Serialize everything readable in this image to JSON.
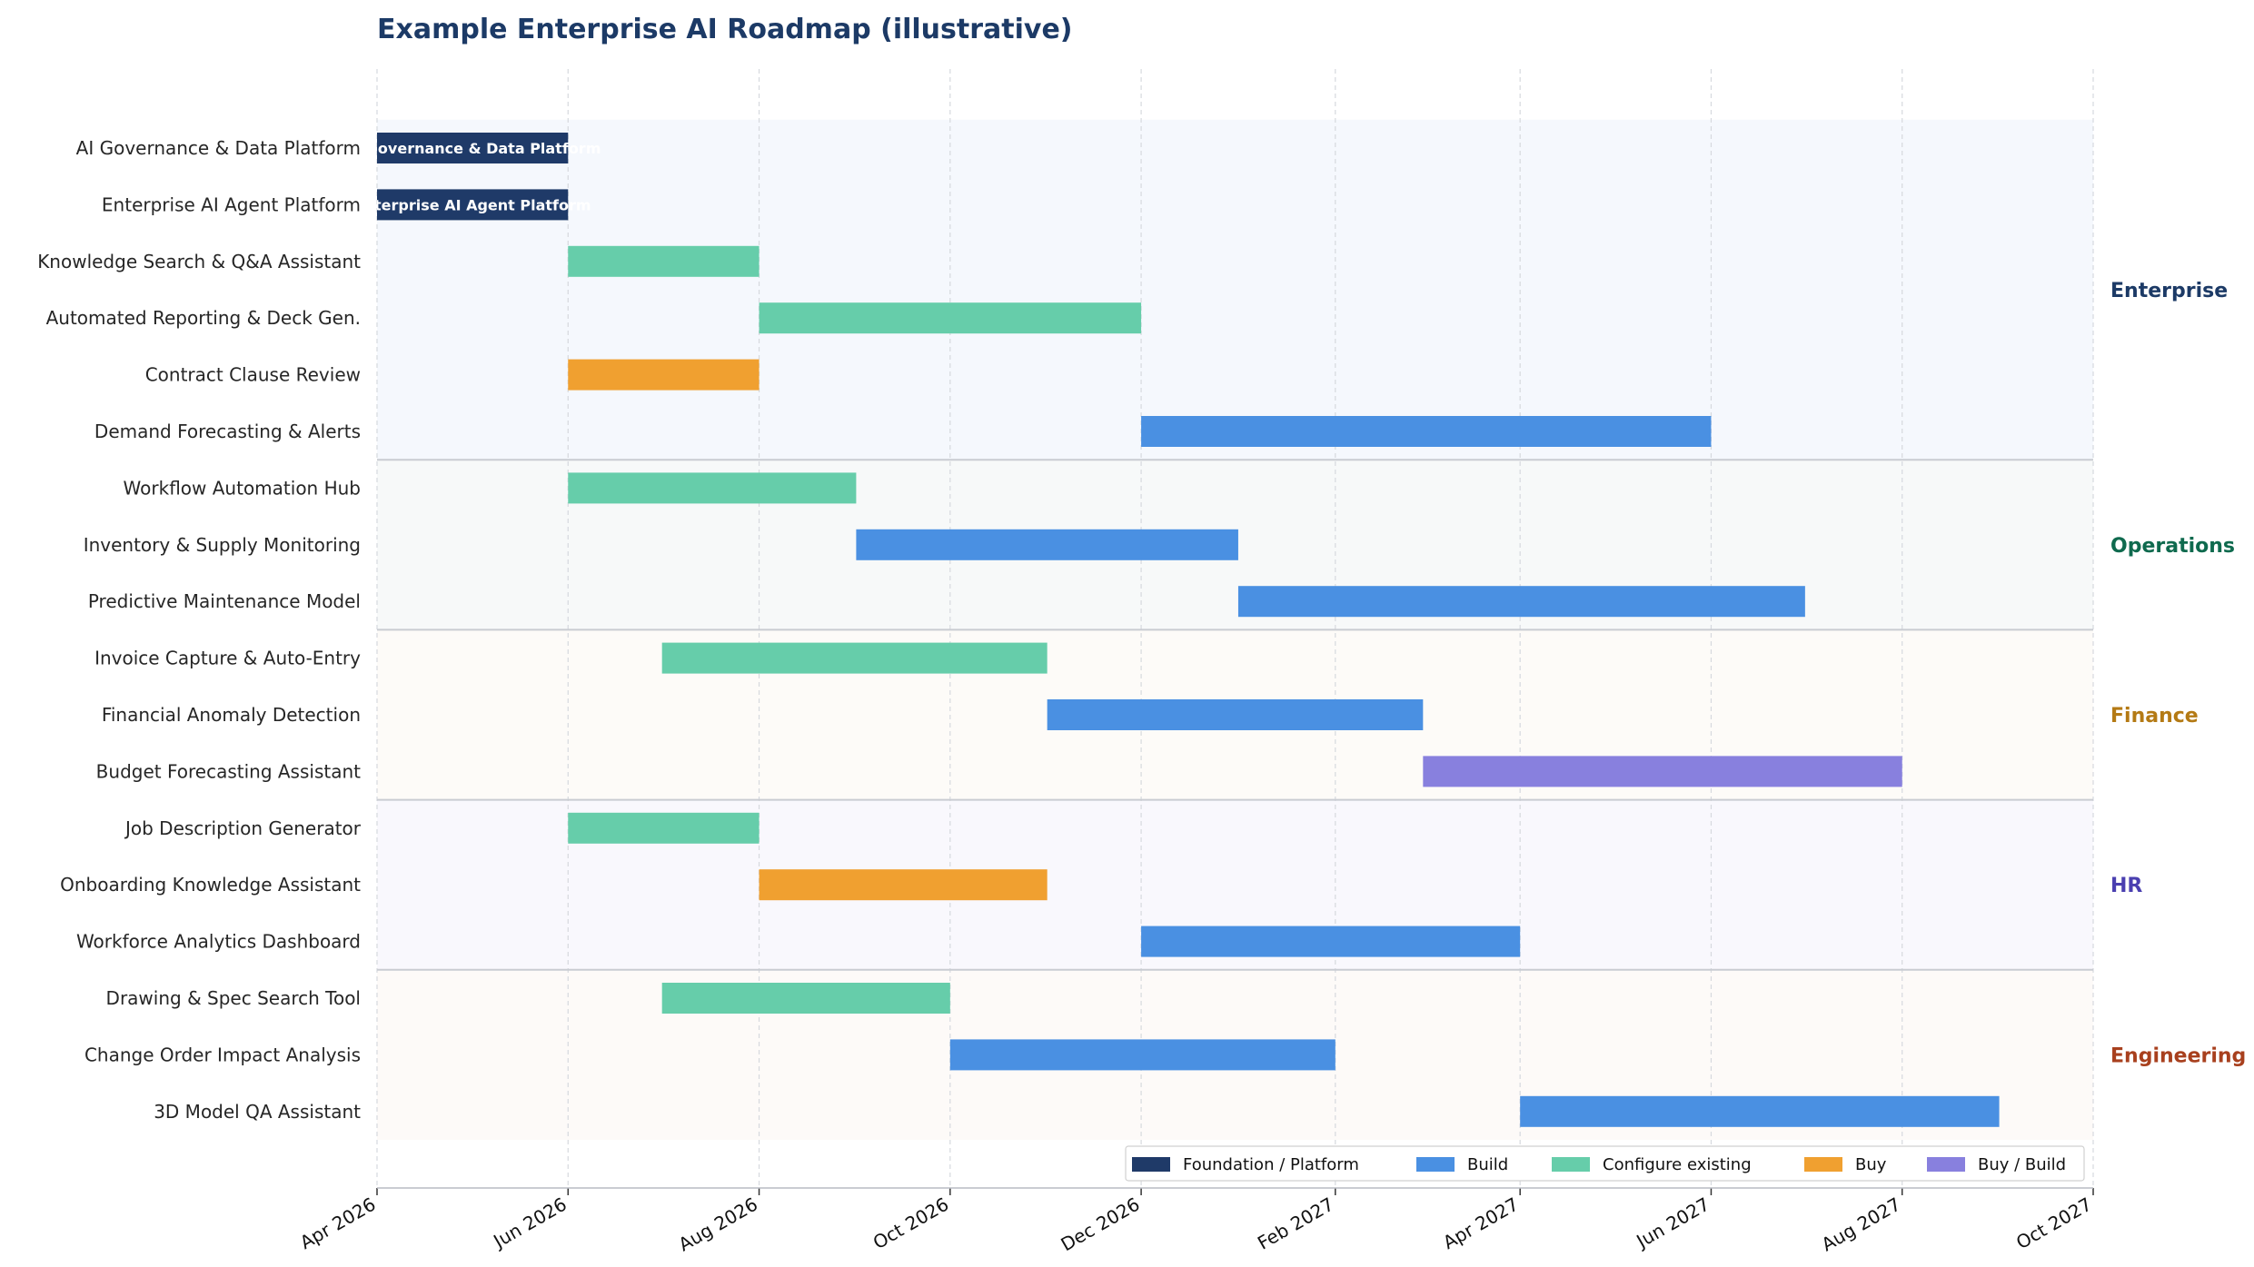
{
  "chart_data": {
    "type": "gantt",
    "title": "Example Enterprise AI Roadmap  (illustrative)",
    "x_axis": {
      "range": [
        "2026-04-01",
        "2027-10-01"
      ],
      "ticks": [
        {
          "date": "2026-04-01",
          "label": "Apr 2026"
        },
        {
          "date": "2026-06-01",
          "label": "Jun 2026"
        },
        {
          "date": "2026-08-01",
          "label": "Aug 2026"
        },
        {
          "date": "2026-10-01",
          "label": "Oct 2026"
        },
        {
          "date": "2026-12-01",
          "label": "Dec 2026"
        },
        {
          "date": "2027-02-01",
          "label": "Feb 2027"
        },
        {
          "date": "2027-04-01",
          "label": "Apr 2027"
        },
        {
          "date": "2027-06-01",
          "label": "Jun 2027"
        },
        {
          "date": "2027-08-01",
          "label": "Aug 2027"
        },
        {
          "date": "2027-10-01",
          "label": "Oct 2027"
        }
      ],
      "grid": true
    },
    "categories": {
      "foundation": {
        "label": "Foundation / Platform",
        "color": "#1f3a68"
      },
      "build": {
        "label": "Build",
        "color": "#4a90e2"
      },
      "configure": {
        "label": "Configure existing",
        "color": "#66cdaa"
      },
      "buy": {
        "label": "Buy",
        "color": "#f0a030"
      },
      "buybuild": {
        "label": "Buy / Build",
        "color": "#8880de"
      }
    },
    "legend_order": [
      "foundation",
      "build",
      "configure",
      "buy",
      "buybuild"
    ],
    "legend_position": "lower-right",
    "groups": [
      {
        "name": "Enterprise",
        "color": "#1c3a66",
        "band": "#f5f8fd",
        "tasks": [
          {
            "name": "AI Governance & Data Platform",
            "start": "2026-04-01",
            "end": "2026-06-01",
            "category": "foundation",
            "bar_label": "AI Governance & Data Platform"
          },
          {
            "name": "Enterprise AI Agent Platform",
            "start": "2026-04-01",
            "end": "2026-06-01",
            "category": "foundation",
            "bar_label": "Enterprise AI Agent Platform"
          },
          {
            "name": "Knowledge Search & Q&A Assistant",
            "start": "2026-06-01",
            "end": "2026-08-01",
            "category": "configure"
          },
          {
            "name": "Automated Reporting & Deck Gen.",
            "start": "2026-08-01",
            "end": "2026-12-01",
            "category": "configure"
          },
          {
            "name": "Contract Clause Review",
            "start": "2026-06-01",
            "end": "2026-08-01",
            "category": "buy"
          },
          {
            "name": "Demand Forecasting & Alerts",
            "start": "2026-12-01",
            "end": "2027-06-01",
            "category": "build"
          }
        ]
      },
      {
        "name": "Operations",
        "color": "#0f6a4e",
        "band": "#f7f9f9",
        "tasks": [
          {
            "name": "Workflow Automation Hub",
            "start": "2026-06-01",
            "end": "2026-09-01",
            "category": "configure"
          },
          {
            "name": "Inventory & Supply Monitoring",
            "start": "2026-09-01",
            "end": "2027-01-01",
            "category": "build"
          },
          {
            "name": "Predictive Maintenance Model",
            "start": "2027-01-01",
            "end": "2027-07-01",
            "category": "build"
          }
        ]
      },
      {
        "name": "Finance",
        "color": "#b47a14",
        "band": "#fdfbf8",
        "tasks": [
          {
            "name": "Invoice Capture & Auto-Entry",
            "start": "2026-07-01",
            "end": "2026-11-01",
            "category": "configure"
          },
          {
            "name": "Financial Anomaly Detection",
            "start": "2026-11-01",
            "end": "2027-03-01",
            "category": "build"
          },
          {
            "name": "Budget Forecasting Assistant",
            "start": "2027-03-01",
            "end": "2027-08-01",
            "category": "buybuild"
          }
        ]
      },
      {
        "name": "HR",
        "color": "#4a3fb0",
        "band": "#f9f8fd",
        "tasks": [
          {
            "name": "Job Description Generator",
            "start": "2026-06-01",
            "end": "2026-08-01",
            "category": "configure"
          },
          {
            "name": "Onboarding Knowledge Assistant",
            "start": "2026-08-01",
            "end": "2026-11-01",
            "category": "buy"
          },
          {
            "name": "Workforce Analytics Dashboard",
            "start": "2026-12-01",
            "end": "2027-04-01",
            "category": "build"
          }
        ]
      },
      {
        "name": "Engineering",
        "color": "#a8401e",
        "band": "#fdfaf8",
        "tasks": [
          {
            "name": "Drawing & Spec Search Tool",
            "start": "2026-07-01",
            "end": "2026-10-01",
            "category": "configure"
          },
          {
            "name": "Change Order Impact Analysis",
            "start": "2026-10-01",
            "end": "2027-02-01",
            "category": "build"
          },
          {
            "name": "3D Model QA Assistant",
            "start": "2027-04-01",
            "end": "2027-09-01",
            "category": "build"
          }
        ]
      }
    ]
  }
}
